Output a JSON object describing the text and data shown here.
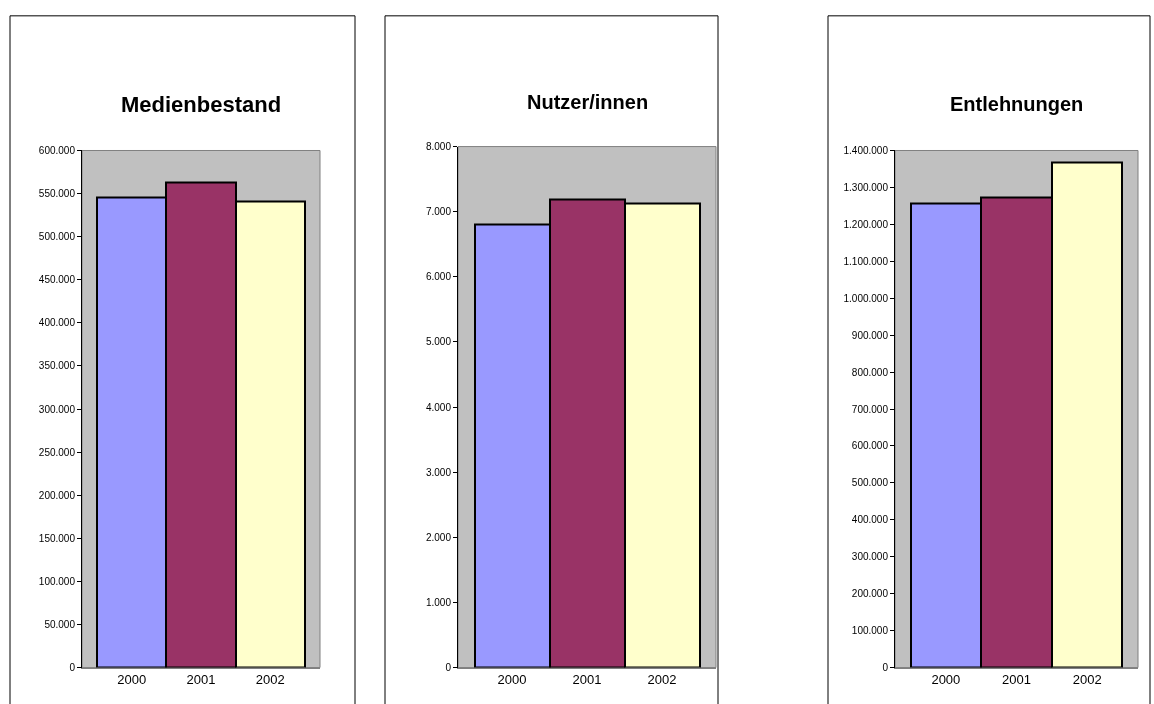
{
  "chart_data": [
    {
      "type": "bar",
      "title": "Medienbestand",
      "categories": [
        "2000",
        "2001",
        "2002"
      ],
      "values": [
        545000,
        563000,
        541000
      ],
      "colors": [
        "#9999ff",
        "#993366",
        "#ffffcc"
      ],
      "ylim": [
        0,
        600000
      ],
      "yticks": [
        0,
        {
          "value": 50000,
          "label": "50.000"
        },
        {
          "value": 100000,
          "label": "100.000"
        },
        {
          "value": 150000,
          "label": "150.000"
        },
        {
          "value": 200000,
          "label": "200.000"
        },
        {
          "value": 250000,
          "label": "250.000"
        },
        {
          "value": 300000,
          "label": "300.000"
        },
        {
          "value": 350000,
          "label": "350.000"
        },
        {
          "value": 400000,
          "label": "400.000"
        },
        {
          "value": 450000,
          "label": "450.000"
        },
        {
          "value": 500000,
          "label": "500.000"
        },
        {
          "value": 550000,
          "label": "550.000"
        },
        {
          "value": 600000,
          "label": "600.000"
        }
      ]
    },
    {
      "type": "bar",
      "title": "Nutzer/innen",
      "categories": [
        "2000",
        "2001",
        "2002"
      ],
      "values": [
        6800,
        7190,
        7130
      ],
      "colors": [
        "#9999ff",
        "#993366",
        "#ffffcc"
      ],
      "ylim": [
        0,
        8000
      ],
      "yticks": [
        0,
        {
          "value": 1000,
          "label": "1.000"
        },
        {
          "value": 2000,
          "label": "2.000"
        },
        {
          "value": 3000,
          "label": "3.000"
        },
        {
          "value": 4000,
          "label": "4.000"
        },
        {
          "value": 5000,
          "label": "5.000"
        },
        {
          "value": 6000,
          "label": "6.000"
        },
        {
          "value": 7000,
          "label": "7.000"
        },
        {
          "value": 8000,
          "label": "8.000"
        }
      ]
    },
    {
      "type": "bar",
      "title": "Entlehnungen",
      "categories": [
        "2000",
        "2001",
        "2002"
      ],
      "values": [
        1256000,
        1272000,
        1368000
      ],
      "colors": [
        "#9999ff",
        "#993366",
        "#ffffcc"
      ],
      "ylim": [
        0,
        1400000
      ],
      "yticks": [
        0,
        {
          "value": 100000,
          "label": "100.000"
        },
        {
          "value": 200000,
          "label": "200.000"
        },
        {
          "value": 300000,
          "label": "300.000"
        },
        {
          "value": 400000,
          "label": "400.000"
        },
        {
          "value": 500000,
          "label": "500.000"
        },
        {
          "value": 600000,
          "label": "600.000"
        },
        {
          "value": 700000,
          "label": "700.000"
        },
        {
          "value": 800000,
          "label": "800.000"
        },
        {
          "value": 900000,
          "label": "900.000"
        },
        {
          "value": 1000000,
          "label": "1.000.000"
        },
        {
          "value": 1100000,
          "label": "1.100.000"
        },
        {
          "value": 1200000,
          "label": "1.200.000"
        },
        {
          "value": 1300000,
          "label": "1.300.000"
        },
        {
          "value": 1400000,
          "label": "1.400.000"
        }
      ]
    }
  ]
}
